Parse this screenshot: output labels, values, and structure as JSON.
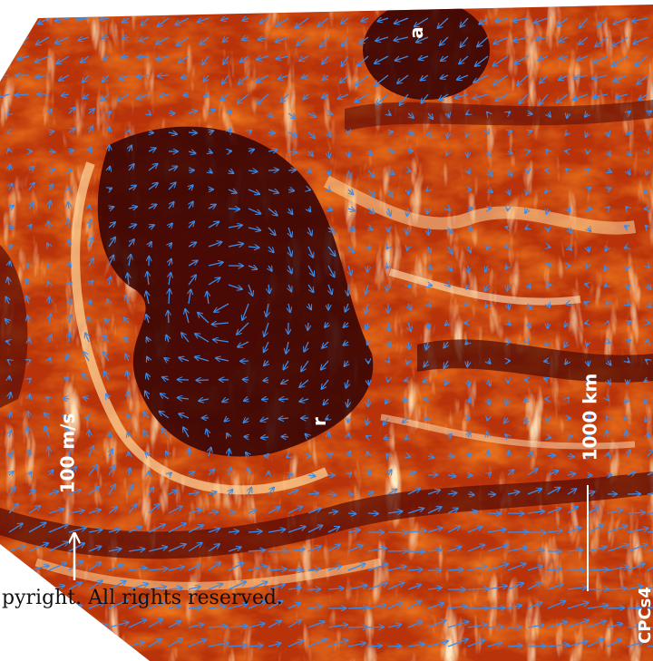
{
  "labels": {
    "feature_a": "a",
    "feature_r": "r",
    "speed_scale": "100 m/s",
    "distance_scale": "1000 km",
    "image_id": "CPCs4"
  },
  "watermark": "pyright. All rights reserved.",
  "colors": {
    "dark": "#3a0604",
    "mid": "#b8320a",
    "orange": "#f07a1e",
    "light": "#ffd9a0",
    "vector": "#3b8be8"
  }
}
